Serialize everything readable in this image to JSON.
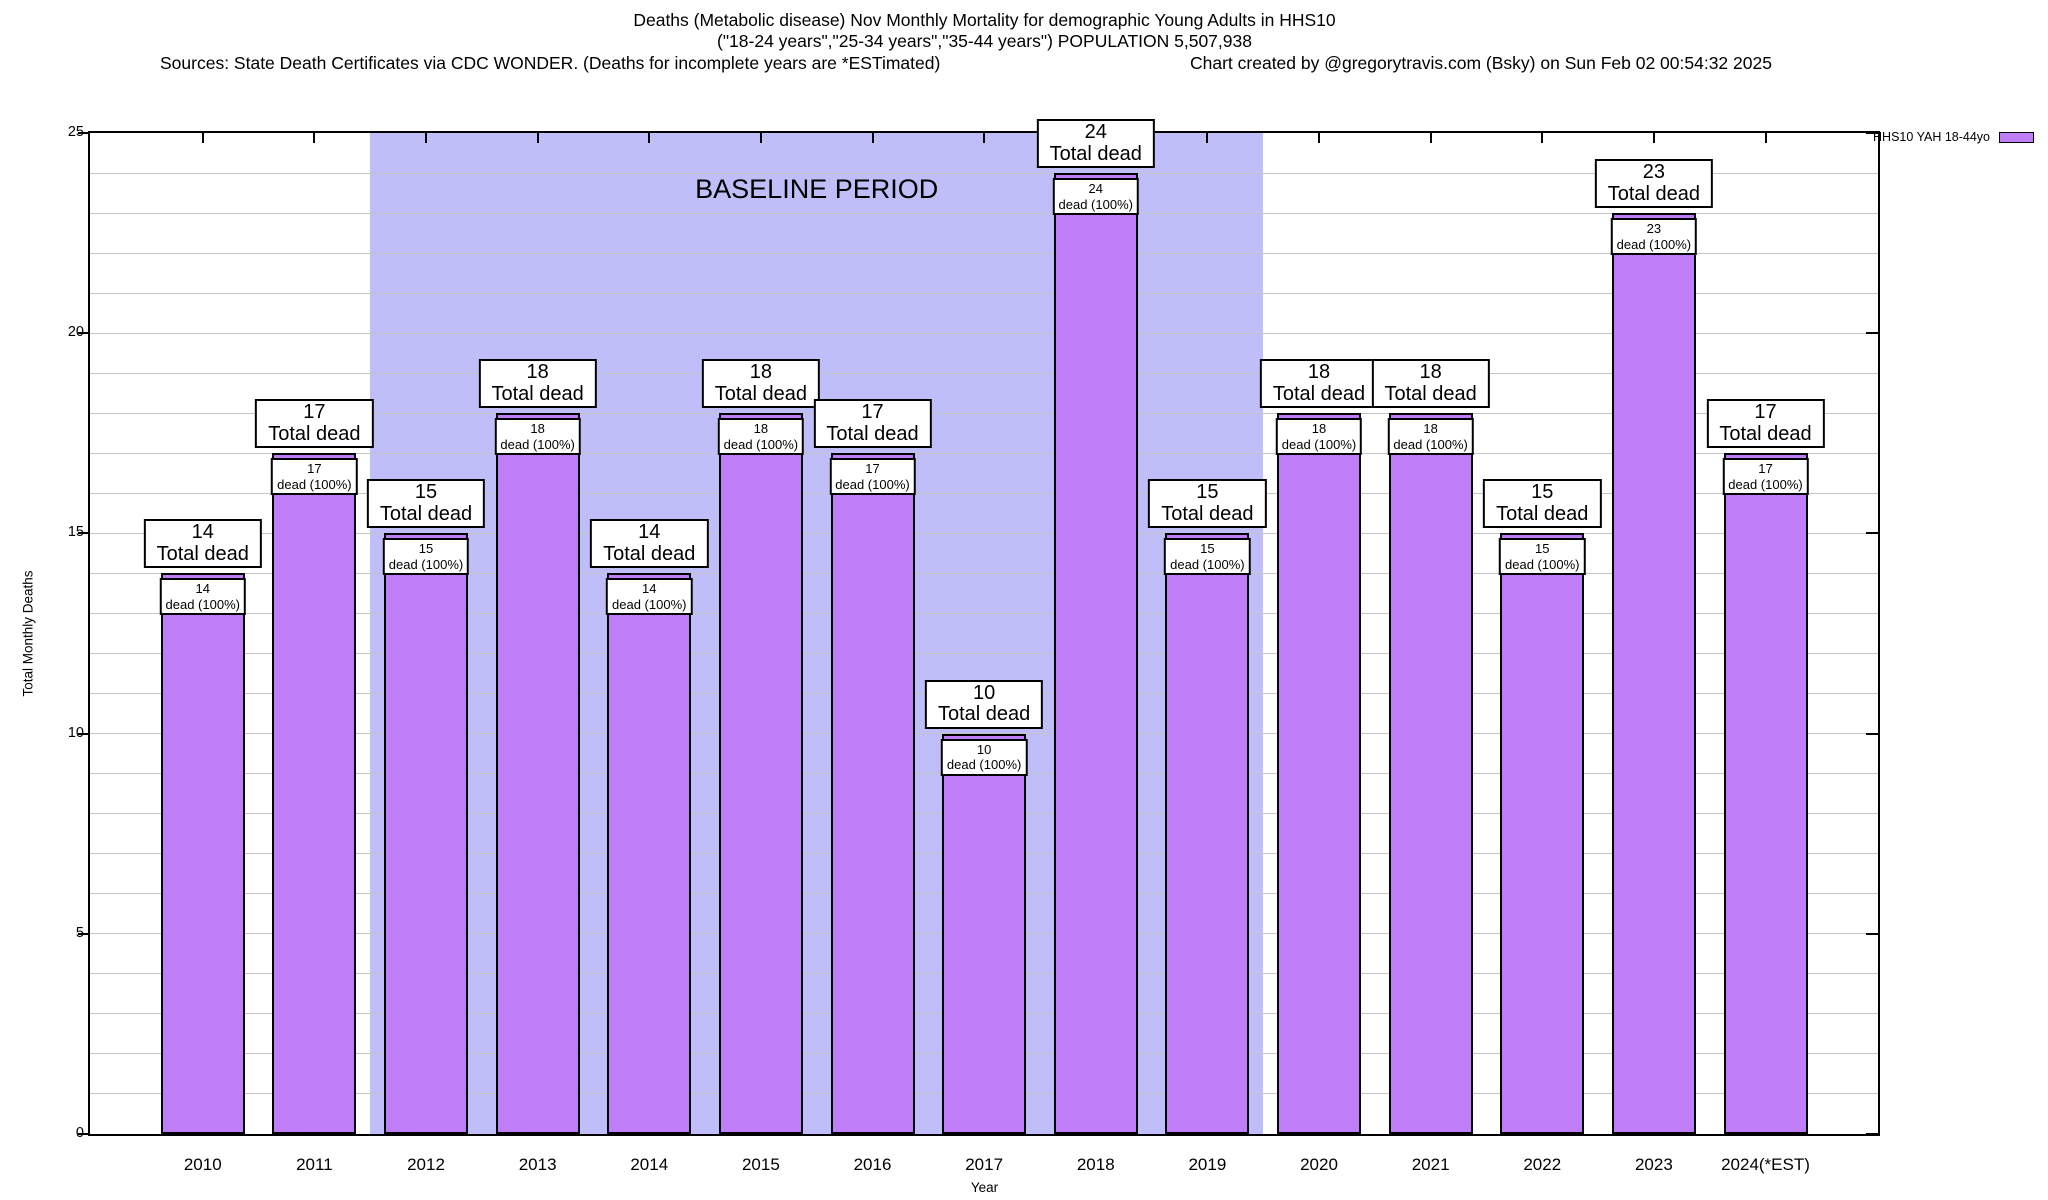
{
  "header": {
    "title_line1": "Deaths (Metabolic disease) Nov Monthly Mortality for demographic Young Adults in HHS10",
    "title_line2": "(\"18-24 years\",\"25-34 years\",\"35-44 years\") POPULATION 5,507,938",
    "sources": "Sources: State Death Certificates via CDC WONDER. (Deaths for incomplete years are *ESTimated)",
    "credit": "Chart created by @gregorytravis.com (Bsky) on Sun Feb 02 00:54:32 2025"
  },
  "legend": {
    "label": "HHS10 YAH 18-44yo",
    "position": "top-right-outside"
  },
  "axes": {
    "y_title": "Total Monthly Deaths",
    "x_title": "Year",
    "y_ticks": [
      0,
      5,
      10,
      15,
      20,
      25
    ],
    "y_minor_step": 1,
    "grid": "on"
  },
  "chart_data": {
    "type": "bar",
    "title": "Deaths (Metabolic disease) Nov Monthly Mortality for demographic Young Adults in HHS10",
    "xlabel": "Year",
    "ylabel": "Total Monthly Deaths",
    "ylim": [
      0,
      25
    ],
    "legend_entry": "HHS10 YAH 18-44yo",
    "categories": [
      "2010",
      "2011",
      "2012",
      "2013",
      "2014",
      "2015",
      "2016",
      "2017",
      "2018",
      "2019",
      "2020",
      "2021",
      "2022",
      "2023",
      "2024(*EST)"
    ],
    "values": [
      14,
      17,
      15,
      18,
      14,
      18,
      17,
      10,
      24,
      15,
      18,
      18,
      15,
      23,
      17
    ],
    "bar_top_label_line2": "Total dead",
    "bar_inner_label_line2": "dead (100%)",
    "baseline_period": {
      "label": "BASELINE PERIOD",
      "start_category": "2012",
      "end_category": "2019",
      "start_index": 2,
      "end_index": 9
    },
    "colors": {
      "bar_fill": "#bf7df7",
      "bar_border": "#000000",
      "baseline_bg": "#bfbef8",
      "gridline": "#c4c4c4"
    }
  }
}
